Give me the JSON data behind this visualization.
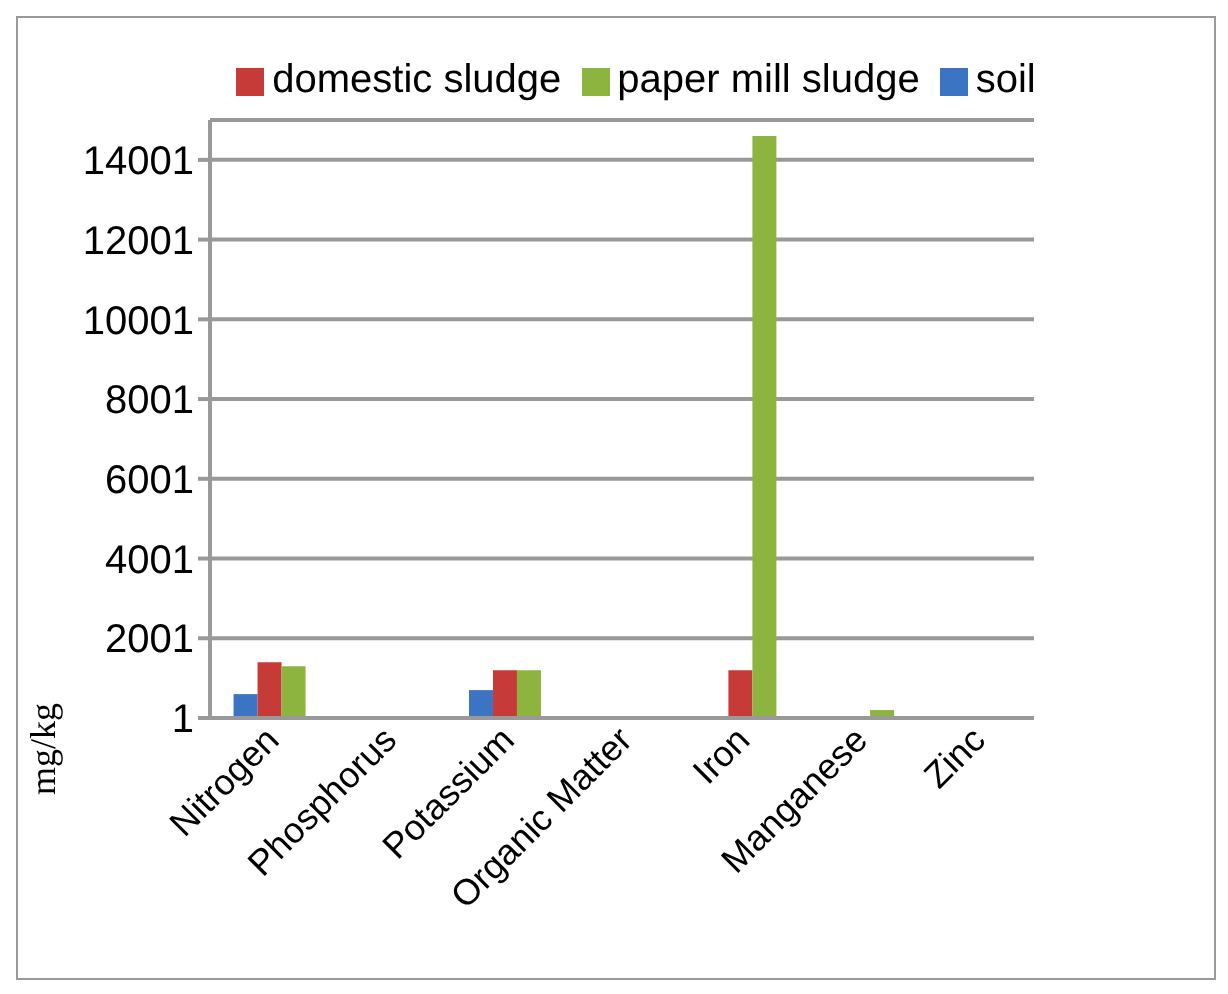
{
  "chart_data": {
    "type": "bar",
    "ylabel": "mg/kg",
    "categories": [
      "Nitrogen",
      "Phosphorus",
      "Potassium",
      "Organic Matter",
      "Iron",
      "Manganese",
      "Zinc"
    ],
    "series": [
      {
        "name": "soil",
        "color": "#3a74c2",
        "values": [
          600,
          null,
          700,
          null,
          30,
          30,
          30
        ]
      },
      {
        "name": "domestic sludge",
        "color": "#c63b38",
        "values": [
          1400,
          null,
          1200,
          null,
          1200,
          null,
          null
        ]
      },
      {
        "name": "paper mill sludge",
        "color": "#8db43e",
        "values": [
          1300,
          null,
          1200,
          null,
          14600,
          200,
          null
        ]
      }
    ],
    "ylim": [
      1,
      15001
    ],
    "yticks": [
      1,
      2001,
      4001,
      6001,
      8001,
      10001,
      12001,
      14001
    ],
    "grid": "y",
    "legend": "top"
  }
}
